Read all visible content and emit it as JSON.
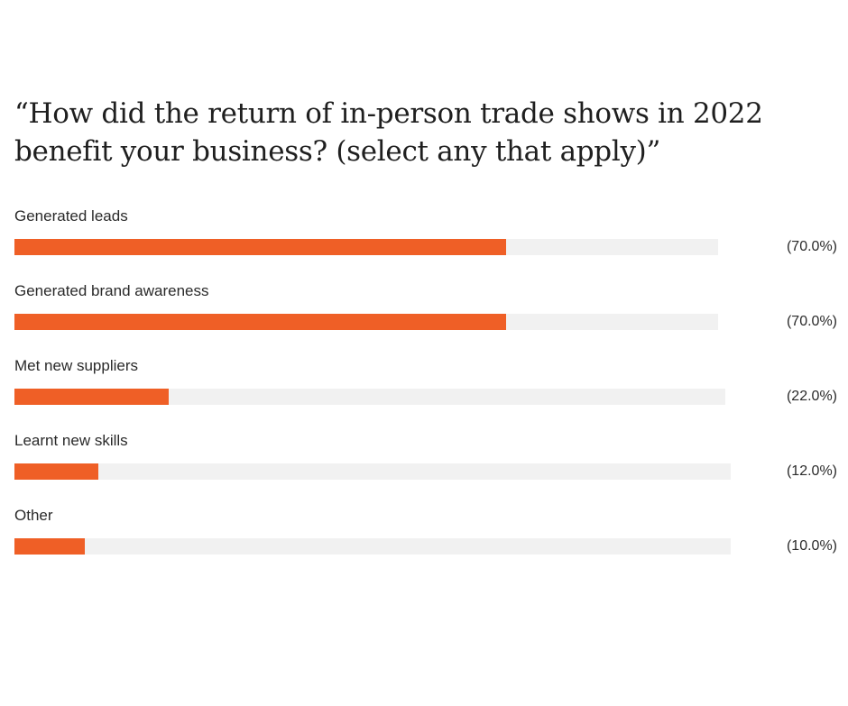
{
  "chart_data": {
    "type": "bar",
    "orientation": "horizontal",
    "title_lines": [
      "“How did the return of in-person trade shows in 2022",
      "benefit your business? (select any that apply)”"
    ],
    "categories": [
      "Generated leads",
      "Generated brand awareness",
      "Met new suppliers",
      "Learnt new skills",
      "Other"
    ],
    "values": [
      70.0,
      70.0,
      22.0,
      12.0,
      10.0
    ],
    "value_labels": [
      "(70.0%)",
      "(70.0%)",
      "(22.0%)",
      "(12.0%)",
      "(10.0%)"
    ],
    "xlim": [
      0,
      100
    ],
    "grid": false,
    "legend": "none",
    "colors": {
      "bar": "#ef5f26",
      "track": "#f1f1f1",
      "text": "#2a2a2a"
    }
  }
}
